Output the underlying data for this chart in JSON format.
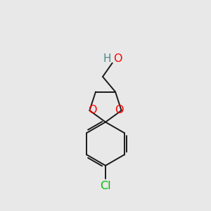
{
  "bg_color": "#e8e8e8",
  "bond_color": "#1a1a1a",
  "o_color": "#ff0000",
  "cl_color": "#00bb00",
  "ho_h_color": "#4a8a8a",
  "ho_o_color": "#ff0000",
  "lw": 1.4,
  "fs": 11.5,
  "xlim": [
    0,
    10
  ],
  "ylim": [
    0,
    10
  ]
}
